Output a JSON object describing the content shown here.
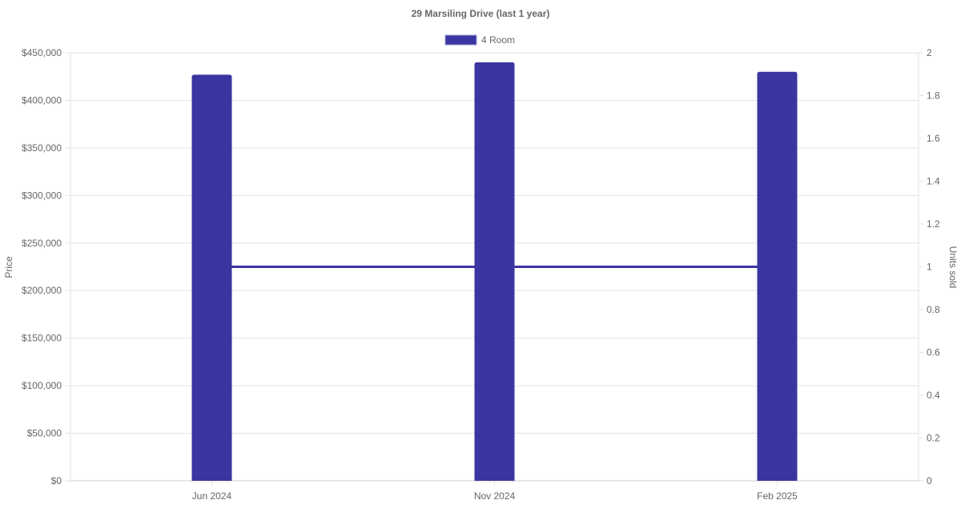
{
  "chart_data": {
    "type": "bar",
    "title": "29 Marsiling Drive (last 1 year)",
    "categories": [
      "Jun 2024",
      "Nov 2024",
      "Feb 2025"
    ],
    "legend": {
      "position": "top",
      "entries": [
        "4 Room"
      ]
    },
    "series": [
      {
        "name": "4 Room",
        "type": "bar",
        "axis": "left",
        "values": [
          427000,
          440000,
          430000
        ],
        "color": "#3a35a0"
      },
      {
        "type": "line",
        "axis": "right",
        "values": [
          1,
          1,
          1
        ],
        "color": "#3a35a0"
      }
    ],
    "ylabel": "Price",
    "y2label": "Units sold",
    "ylim": [
      0,
      450000
    ],
    "y2lim": [
      0,
      2
    ],
    "yticks": [
      "$0",
      "$50,000",
      "$100,000",
      "$150,000",
      "$200,000",
      "$250,000",
      "$300,000",
      "$350,000",
      "$400,000",
      "$450,000"
    ],
    "y2ticks": [
      "0",
      "0.2",
      "0.4",
      "0.6",
      "0.8",
      "1",
      "1.2",
      "1.4",
      "1.6",
      "1.8",
      "2"
    ],
    "grid": true
  }
}
